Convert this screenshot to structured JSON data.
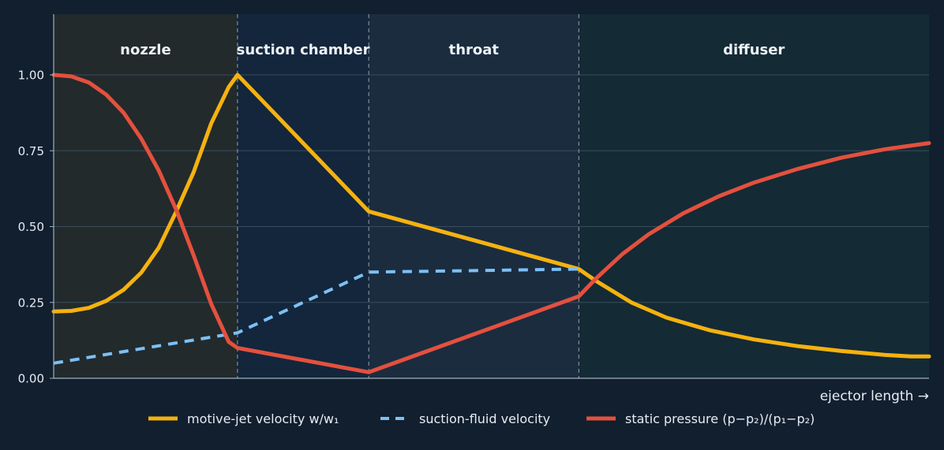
{
  "chart_data": {
    "type": "line",
    "title": "",
    "xlabel": "ejector length →",
    "ylabel": "",
    "xlim": [
      0,
      1
    ],
    "ylim": [
      0,
      1.2
    ],
    "y_ticks": [
      0.0,
      0.25,
      0.5,
      0.75,
      1.0
    ],
    "y_tick_labels": [
      "0.00",
      "0.25",
      "0.50",
      "0.75",
      "1.00"
    ],
    "grid": true,
    "legend_position": "bottom-center",
    "background_color": "#121f2f",
    "regions": [
      {
        "name": "nozzle",
        "x_start": 0.0,
        "x_end": 0.21,
        "color": "#222a2c"
      },
      {
        "name": "suction chamber",
        "x_start": 0.21,
        "x_end": 0.36,
        "color": "#13263c"
      },
      {
        "name": "throat",
        "x_start": 0.36,
        "x_end": 0.6,
        "color": "#1b2c3f"
      },
      {
        "name": "diffuser",
        "x_start": 0.6,
        "x_end": 1.0,
        "color": "#142a35"
      }
    ],
    "series": [
      {
        "name": "motive-jet velocity  w/w₁",
        "color": "#f5b20f",
        "dash": "solid",
        "x": [
          0,
          0.02,
          0.04,
          0.06,
          0.08,
          0.1,
          0.12,
          0.14,
          0.16,
          0.18,
          0.2,
          0.21,
          0.36,
          0.6,
          0.62,
          0.66,
          0.7,
          0.75,
          0.8,
          0.85,
          0.9,
          0.95,
          0.98,
          1.0
        ],
        "y": [
          0.22,
          0.222,
          0.232,
          0.255,
          0.292,
          0.348,
          0.43,
          0.55,
          0.68,
          0.84,
          0.96,
          1.0,
          0.55,
          0.36,
          0.32,
          0.25,
          0.2,
          0.158,
          0.128,
          0.106,
          0.09,
          0.077,
          0.072,
          0.072
        ]
      },
      {
        "name": "suction-fluid velocity",
        "color": "#7cc0f5",
        "dash": "dashed",
        "x": [
          0,
          0.21,
          0.36,
          0.6
        ],
        "y": [
          0.05,
          0.15,
          0.35,
          0.36
        ]
      },
      {
        "name": "static pressure  (p−p₂)/(p₁−p₂)",
        "color": "#e4503e",
        "dash": "solid",
        "x": [
          0,
          0.02,
          0.04,
          0.06,
          0.08,
          0.1,
          0.12,
          0.14,
          0.16,
          0.18,
          0.2,
          0.21,
          0.36,
          0.6,
          0.62,
          0.65,
          0.68,
          0.72,
          0.76,
          0.8,
          0.85,
          0.9,
          0.95,
          1.0
        ],
        "y": [
          1.0,
          0.995,
          0.975,
          0.935,
          0.875,
          0.79,
          0.685,
          0.555,
          0.405,
          0.245,
          0.12,
          0.1,
          0.02,
          0.27,
          0.33,
          0.41,
          0.475,
          0.545,
          0.6,
          0.645,
          0.69,
          0.727,
          0.755,
          0.775
        ]
      }
    ]
  }
}
